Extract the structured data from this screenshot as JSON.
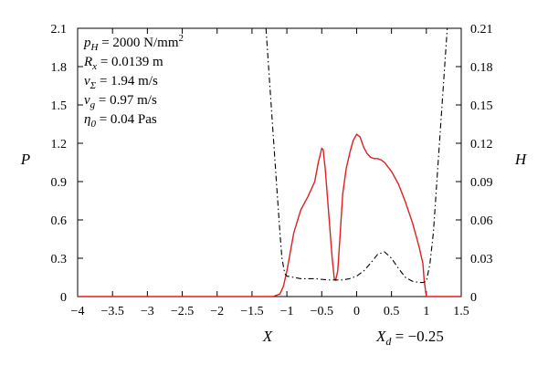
{
  "chart_data": {
    "type": "line",
    "xlabel": "X",
    "ylabel_left": "P",
    "ylabel_right": "H",
    "xlim": [
      -4,
      1.5
    ],
    "ylim_left": [
      0,
      2.1
    ],
    "ylim_right": [
      0,
      0.21
    ],
    "grid": false,
    "x_ticks": [
      "−4",
      "−3.5",
      "−3",
      "−2.5",
      "−2",
      "−1.5",
      "−1",
      "−0.5",
      "0",
      "0.5",
      "1",
      "1.5"
    ],
    "y_left_ticks": [
      "0",
      "0.3",
      "0.6",
      "0.9",
      "1.2",
      "1.5",
      "1.8",
      "2.1"
    ],
    "y_right_ticks": [
      "0",
      "0.03",
      "0.06",
      "0.09",
      "0.12",
      "0.15",
      "0.18",
      "0.21"
    ],
    "annotation": {
      "base": "X",
      "sub": "d",
      "text": " = −0.25"
    },
    "parameters": [
      {
        "sym": "p",
        "sub": "H",
        "rest": " = 2000 N/mm",
        "sup": "2"
      },
      {
        "sym": "R",
        "sub": "x",
        "rest": " = 0.0139 m",
        "sup": ""
      },
      {
        "sym": "v",
        "sub": "Σ",
        "rest": " = 1.94 m/s",
        "sup": ""
      },
      {
        "sym": "v",
        "sub": "g",
        "rest": " = 0.97 m/s",
        "sup": ""
      },
      {
        "sym": "η",
        "sub": "0",
        "rest": " = 0.04 Pas",
        "sup": ""
      }
    ],
    "series": [
      {
        "axis": "left",
        "color": "#e02020",
        "style": "solid",
        "x": [
          -4.0,
          -1.2,
          -1.1,
          -1.05,
          -1.0,
          -0.95,
          -0.9,
          -0.8,
          -0.7,
          -0.6,
          -0.55,
          -0.5,
          -0.48,
          -0.45,
          -0.4,
          -0.35,
          -0.32,
          -0.3,
          -0.27,
          -0.24,
          -0.2,
          -0.15,
          -0.1,
          -0.05,
          0.0,
          0.05,
          0.1,
          0.15,
          0.2,
          0.25,
          0.3,
          0.35,
          0.4,
          0.5,
          0.6,
          0.7,
          0.8,
          0.85,
          0.9,
          0.92,
          0.95,
          0.97,
          1.0,
          1.5
        ],
        "y": [
          0.0,
          0.0,
          0.02,
          0.08,
          0.2,
          0.35,
          0.5,
          0.68,
          0.78,
          0.9,
          1.05,
          1.16,
          1.15,
          1.0,
          0.65,
          0.3,
          0.14,
          0.13,
          0.2,
          0.45,
          0.8,
          1.0,
          1.12,
          1.22,
          1.27,
          1.25,
          1.17,
          1.12,
          1.09,
          1.08,
          1.08,
          1.07,
          1.05,
          0.98,
          0.88,
          0.74,
          0.58,
          0.48,
          0.38,
          0.33,
          0.26,
          0.12,
          0.0,
          0.0
        ]
      },
      {
        "axis": "right",
        "color": "#000000",
        "style": "dashdot",
        "x": [
          -1.3,
          -1.25,
          -1.2,
          -1.15,
          -1.1,
          -1.07,
          -1.03,
          -1.0,
          -0.9,
          -0.8,
          -0.6,
          -0.4,
          -0.2,
          -0.1,
          0.0,
          0.1,
          0.2,
          0.3,
          0.4,
          0.5,
          0.6,
          0.7,
          0.8,
          0.9,
          0.95,
          1.0,
          1.05,
          1.1,
          1.15,
          1.2,
          1.25,
          1.3
        ],
        "y": [
          0.21,
          0.17,
          0.13,
          0.09,
          0.05,
          0.03,
          0.018,
          0.016,
          0.015,
          0.014,
          0.014,
          0.013,
          0.013,
          0.014,
          0.016,
          0.02,
          0.026,
          0.033,
          0.035,
          0.03,
          0.022,
          0.015,
          0.012,
          0.011,
          0.011,
          0.012,
          0.025,
          0.05,
          0.09,
          0.13,
          0.17,
          0.21
        ]
      }
    ]
  }
}
